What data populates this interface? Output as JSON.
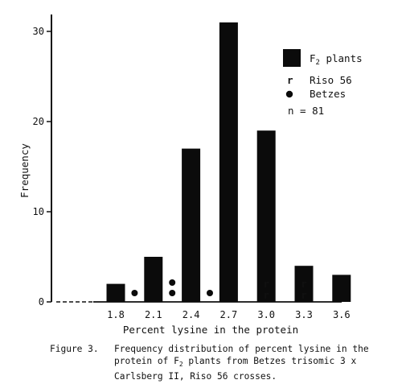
{
  "chart_data": {
    "type": "bar",
    "xlabel": "Percent lysine in the protein",
    "ylabel": "Frequency",
    "categories": [
      "1.8",
      "1.95",
      "2.1",
      "2.25",
      "2.4",
      "2.55",
      "2.7",
      "2.85",
      "3.0",
      "3.15",
      "3.3",
      "3.45",
      "3.6"
    ],
    "x_tick_labels": [
      "1.8",
      "2.1",
      "2.4",
      "2.7",
      "3.0",
      "3.3",
      "3.6"
    ],
    "y_ticks": [
      0,
      10,
      20,
      30
    ],
    "ylim": [
      0,
      32
    ],
    "series": [
      {
        "name": "F2 plants",
        "values": [
          2,
          5,
          17,
          31,
          19,
          4,
          3
        ],
        "x": [
          "1.8",
          "2.1",
          "2.4",
          "2.7",
          "3.0",
          "3.3",
          "3.6"
        ]
      },
      {
        "name": "Riso 56",
        "values": [
          1,
          1
        ],
        "x": [
          "3.0",
          "3.3"
        ],
        "marker": "r"
      },
      {
        "name": "Betzes",
        "values": [
          1,
          1,
          1
        ],
        "x": [
          "1.95",
          "2.25",
          "2.55"
        ],
        "marker": "dot"
      }
    ],
    "legend": {
      "position": "top-right",
      "entries": [
        {
          "label_main": "F",
          "label_sub": "2",
          "label_rest": " plants"
        },
        {
          "label": "Riso 56"
        },
        {
          "label": "Betzes"
        }
      ],
      "n_text": "n = 81"
    },
    "grid": false
  },
  "caption": {
    "label": "Figure 3.",
    "line1": "Frequency distribution of percent lysine in the",
    "line2_pre": "protein of F",
    "line2_sub": "2",
    "line2_post": " plants from Betzes trisomic 3 x",
    "line3": "Carlsberg II, Riso 56 crosses."
  }
}
